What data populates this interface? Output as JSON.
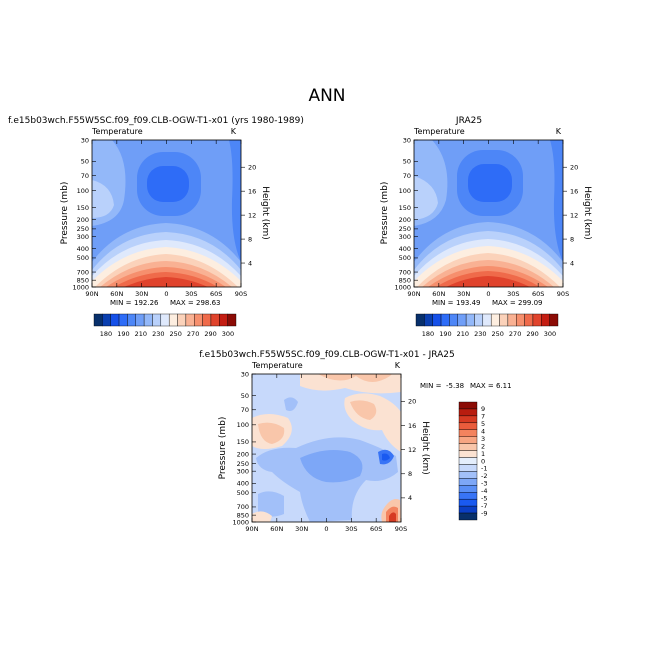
{
  "page": {
    "title": "ANN"
  },
  "palette": {
    "colorbar_levels": [
      "#08306b",
      "#0a3fb0",
      "#1550e8",
      "#2e6cf7",
      "#4d86f7",
      "#6f9ef7",
      "#93b8f9",
      "#b9d1fb",
      "#dfe9fc",
      "#fdeee0",
      "#fbd2ba",
      "#f9b193",
      "#f68f6d",
      "#ef6a4a",
      "#e0432c",
      "#c41d12",
      "#8b0b05"
    ],
    "diff_levels": [
      "#08306b",
      "#0b3fc4",
      "#1a5af0",
      "#3874f6",
      "#5a8ff6",
      "#7da7f7",
      "#a2c0f9",
      "#c7d9fb",
      "#e4eefc",
      "#fbe2d2",
      "#f9c6aa",
      "#f7a582",
      "#f3835e",
      "#ea5c3c",
      "#d63a22",
      "#b81d0f",
      "#8b0b05"
    ]
  },
  "chart_data": [
    {
      "type": "contour",
      "name": "model",
      "title": "f.e15b03wch.F55W5SC.f09_f09.CLB-OGW-T1-x01 (yrs 1980-1989)",
      "subtitle_left": "Temperature",
      "subtitle_right": "K",
      "ylabel": "Pressure (mb)",
      "y2label": "Height (km)",
      "x_ticks": [
        "90N",
        "60N",
        "30N",
        "0",
        "30S",
        "60S",
        "90S"
      ],
      "y_ticks": [
        "30",
        "50",
        "70",
        "100",
        "150",
        "200",
        "250",
        "300",
        "400",
        "500",
        "700",
        "850",
        "1000"
      ],
      "height_ticks": [
        "20",
        "16",
        "12",
        "8",
        "4"
      ],
      "xlim": [
        "90N",
        "90S"
      ],
      "ylim": [
        1000,
        30
      ],
      "min_label": "MIN =",
      "min_value": "192.26",
      "max_label": "MAX =",
      "max_value": "298.63",
      "colorbar_ticks": [
        "180",
        "190",
        "210",
        "230",
        "250",
        "270",
        "290",
        "300"
      ]
    },
    {
      "type": "contour",
      "name": "obs",
      "title": "JRA25",
      "subtitle_left": "Temperature",
      "subtitle_right": "K",
      "ylabel": "Pressure (mb)",
      "y2label": "Height (km)",
      "x_ticks": [
        "90N",
        "60N",
        "30N",
        "0",
        "30S",
        "60S",
        "90S"
      ],
      "y_ticks": [
        "30",
        "50",
        "70",
        "100",
        "150",
        "200",
        "250",
        "300",
        "400",
        "500",
        "700",
        "850",
        "1000"
      ],
      "height_ticks": [
        "20",
        "16",
        "12",
        "8",
        "4"
      ],
      "xlim": [
        "90N",
        "90S"
      ],
      "ylim": [
        1000,
        30
      ],
      "min_label": "MIN =",
      "min_value": "193.49",
      "max_label": "MAX =",
      "max_value": "299.09",
      "colorbar_ticks": [
        "180",
        "190",
        "210",
        "230",
        "250",
        "270",
        "290",
        "300"
      ]
    },
    {
      "type": "contour",
      "name": "difference",
      "title": "f.e15b03wch.F55W5SC.f09_f09.CLB-OGW-T1-x01 - JRA25",
      "subtitle_left": "Temperature",
      "subtitle_right": "K",
      "ylabel": "Pressure (mb)",
      "y2label": "Height (km)",
      "x_ticks": [
        "90N",
        "60N",
        "30N",
        "0",
        "30S",
        "60S",
        "90S"
      ],
      "y_ticks": [
        "30",
        "50",
        "70",
        "100",
        "150",
        "200",
        "250",
        "300",
        "400",
        "500",
        "700",
        "850",
        "1000"
      ],
      "height_ticks": [
        "20",
        "16",
        "12",
        "8",
        "4"
      ],
      "xlim": [
        "90N",
        "90S"
      ],
      "ylim": [
        1000,
        30
      ],
      "min_label": "MIN =",
      "min_value": "-5.38",
      "max_label": "MAX =",
      "max_value": "6.11",
      "colorbar_ticks": [
        "9",
        "7",
        "5",
        "4",
        "3",
        "2",
        "1",
        "0",
        "-1",
        "-2",
        "-3",
        "-4",
        "-5",
        "-7",
        "-9"
      ]
    }
  ]
}
